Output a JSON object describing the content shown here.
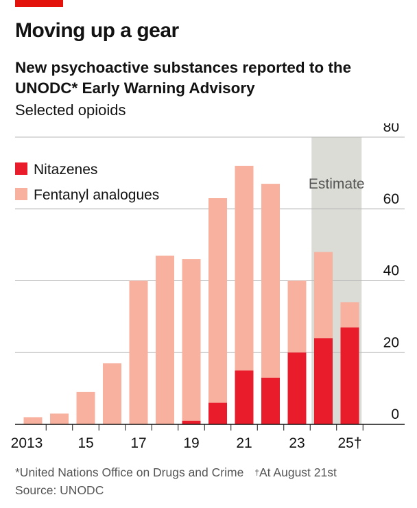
{
  "header": {
    "title": "Moving up a gear",
    "subtitle": "New psychoactive substances reported to the UNODC* Early Warning Advisory",
    "note": "Selected opioids"
  },
  "footer": {
    "footnote1": "*United Nations Office on Drugs and Crime",
    "footnote2_mark": "†",
    "footnote2": "At August 21st",
    "source": "Source: UNODC"
  },
  "colors": {
    "brand_red": "#e3120b",
    "nitazenes": "#e81c2b",
    "fentanyl": "#f8b19e",
    "estimate_band": "#dcdcd7",
    "grid": "#b7b7b7"
  },
  "chart_data": {
    "type": "bar",
    "stacked": true,
    "categories": [
      "2013",
      "2014",
      "2015",
      "2016",
      "2017",
      "2018",
      "2019",
      "2020",
      "2021",
      "2022",
      "2023",
      "2024",
      "2025"
    ],
    "tick_labels": [
      {
        "category": "2013",
        "label": "2013"
      },
      {
        "category": "2015",
        "label": "15"
      },
      {
        "category": "2017",
        "label": "17"
      },
      {
        "category": "2019",
        "label": "19"
      },
      {
        "category": "2021",
        "label": "21"
      },
      {
        "category": "2023",
        "label": "23"
      },
      {
        "category": "2025",
        "label": "25†"
      }
    ],
    "series": [
      {
        "name": "Nitazenes",
        "values": [
          0,
          0,
          0,
          0,
          0,
          0,
          1,
          6,
          15,
          13,
          20,
          24,
          27
        ]
      },
      {
        "name": "Fentanyl analogues",
        "values": [
          2,
          3,
          9,
          17,
          40,
          47,
          45,
          57,
          57,
          54,
          20,
          24,
          7
        ]
      }
    ],
    "ylim": [
      0,
      80
    ],
    "yticks": [
      0,
      20,
      40,
      60,
      80
    ],
    "y_axis_side": "right",
    "grid": true,
    "legend_position": "top-left",
    "annotation": {
      "label": "Estimate",
      "from": "2024",
      "to": "2025"
    }
  }
}
